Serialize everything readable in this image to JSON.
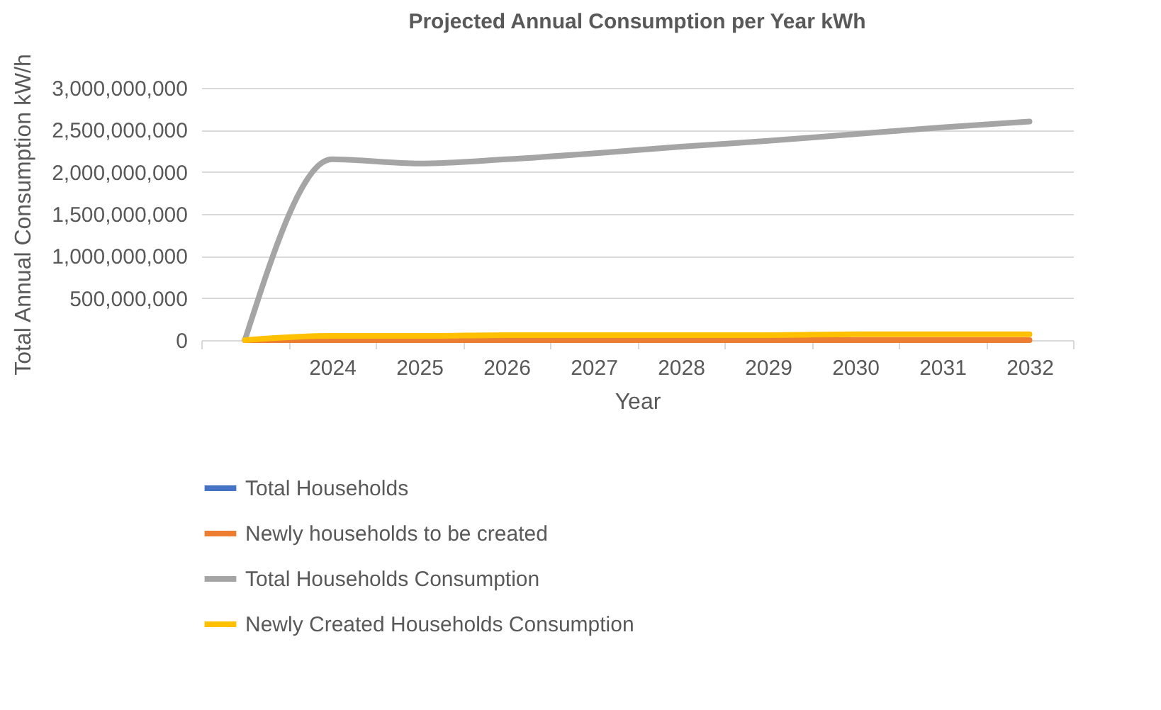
{
  "chart_data": {
    "type": "line",
    "title": "Projected Annual Consumption  per Year kWh",
    "xlabel": "Year",
    "ylabel": "Total Annual Consumption kW/h",
    "categories": [
      null,
      "2024",
      "2025",
      "2026",
      "2027",
      "2028",
      "2029",
      "2030",
      "2031",
      "2032"
    ],
    "ylim": [
      0,
      3000000000
    ],
    "yticks": [
      {
        "value": 0,
        "label": "0"
      },
      {
        "value": 500000000,
        "label": "500,000,000"
      },
      {
        "value": 1000000000,
        "label": "1,000,000,000"
      },
      {
        "value": 1500000000,
        "label": "1,500,000,000"
      },
      {
        "value": 2000000000,
        "label": "2,000,000,000"
      },
      {
        "value": 2500000000,
        "label": "2,500,000,000"
      },
      {
        "value": 3000000000,
        "label": "3,000,000,000"
      }
    ],
    "grid": "y",
    "legend": "bottom",
    "series": [
      {
        "name": "Total Households",
        "color": "#4472c4",
        "values": [
          null,
          null,
          null,
          null,
          null,
          null,
          null,
          null,
          null,
          null
        ]
      },
      {
        "name": "Newly households to be created",
        "color": "#ed7d31",
        "values": [
          0,
          0,
          0,
          0,
          0,
          0,
          0,
          0,
          0,
          0
        ]
      },
      {
        "name": "Total Households Consumption",
        "color": "#a5a5a5",
        "values": [
          0,
          2150000000,
          2100000000,
          2150000000,
          2220000000,
          2300000000,
          2370000000,
          2450000000,
          2530000000,
          2600000000
        ]
      },
      {
        "name": "Newly Created Households Consumption",
        "color": "#ffc000",
        "values": [
          0,
          50000000,
          50000000,
          60000000,
          60000000,
          60000000,
          60000000,
          70000000,
          70000000,
          70000000
        ]
      }
    ]
  }
}
